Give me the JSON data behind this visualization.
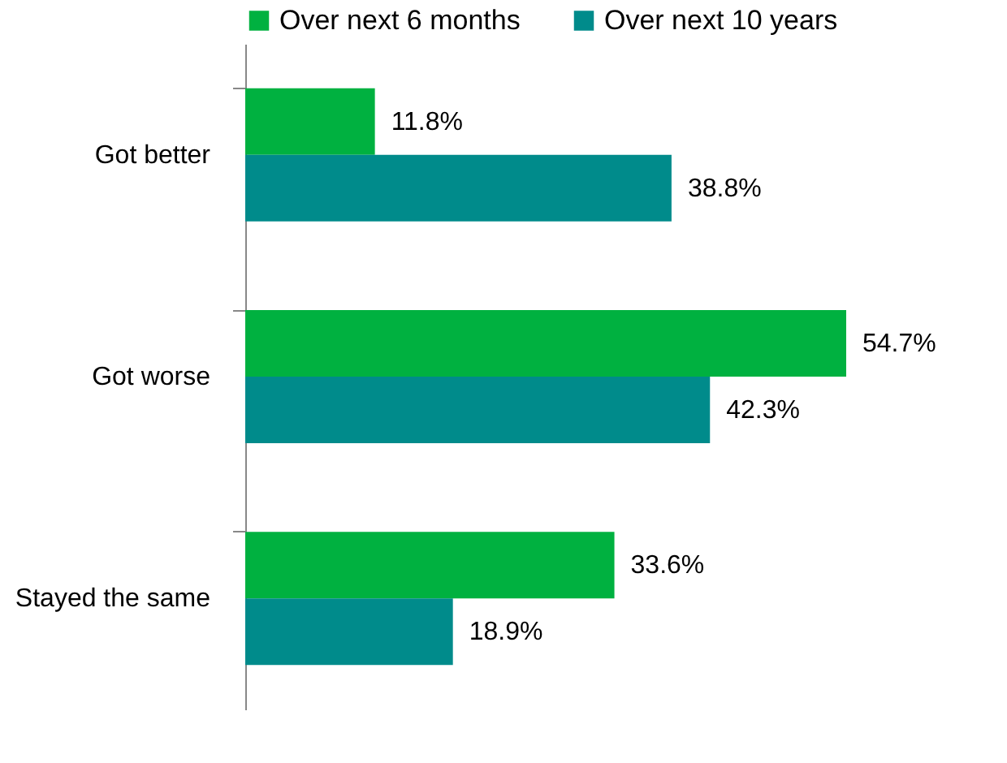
{
  "chart_data": {
    "type": "bar",
    "orientation": "horizontal",
    "categories": [
      "Got better",
      "Got worse",
      "Stayed the same"
    ],
    "series": [
      {
        "name": "Over next 6 months",
        "color": "#00b140",
        "values": [
          11.8,
          54.7,
          33.6
        ],
        "value_labels": [
          "11.8%",
          "54.7%",
          "33.6%"
        ]
      },
      {
        "name": "Over next 10 years",
        "color": "#008b8b",
        "values": [
          38.8,
          42.3,
          18.9
        ],
        "value_labels": [
          "38.8%",
          "42.3%",
          "18.9%"
        ]
      }
    ],
    "legend": "top left"
  }
}
